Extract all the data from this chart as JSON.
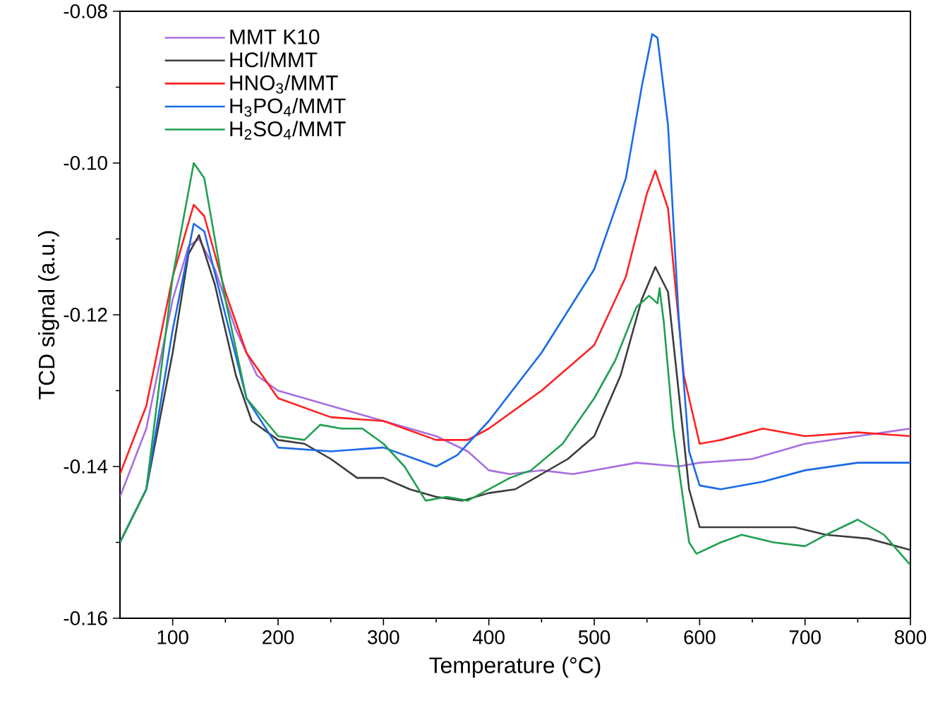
{
  "chart_data": {
    "type": "line",
    "xlabel": "Temperature (°C)",
    "ylabel": "TCD signal (a.u.)",
    "xlim": [
      50,
      800
    ],
    "xticks": [
      100,
      200,
      300,
      400,
      500,
      600,
      700,
      800
    ],
    "ylim": [
      -0.16,
      -0.08
    ],
    "yticks": [
      {
        "value": -0.16,
        "label": "-0.16"
      },
      {
        "value": -0.14,
        "label": "-0.14"
      },
      {
        "value": -0.12,
        "label": "-0.12"
      },
      {
        "value": -0.1,
        "label": "-0.10"
      },
      {
        "value": -0.08,
        "label": "-0.08"
      }
    ],
    "grid": false,
    "legend": "top left",
    "marker": "none",
    "line_style": "solid",
    "series": [
      {
        "name": "MMT K10",
        "color": "#a86ee0",
        "x": [
          50,
          75,
          100,
          115,
          125,
          140,
          160,
          180,
          200,
          250,
          300,
          350,
          380,
          400,
          420,
          450,
          480,
          500,
          540,
          580,
          600,
          650,
          700,
          750,
          800
        ],
        "values": [
          -0.144,
          -0.135,
          -0.118,
          -0.111,
          -0.11,
          -0.114,
          -0.122,
          -0.128,
          -0.13,
          -0.132,
          -0.134,
          -0.136,
          -0.138,
          -0.1405,
          -0.141,
          -0.1405,
          -0.141,
          -0.1405,
          -0.1395,
          -0.14,
          -0.1395,
          -0.139,
          -0.137,
          -0.136,
          -0.135
        ]
      },
      {
        "name": "HCl/MMT",
        "color": "#3c3c3c",
        "x": [
          50,
          75,
          100,
          115,
          125,
          140,
          160,
          175,
          200,
          225,
          250,
          275,
          300,
          325,
          350,
          375,
          400,
          425,
          450,
          475,
          500,
          525,
          545,
          558,
          570,
          580,
          590,
          600,
          650,
          690,
          720,
          760,
          800
        ],
        "values": [
          -0.15,
          -0.143,
          -0.125,
          -0.112,
          -0.1095,
          -0.116,
          -0.128,
          -0.134,
          -0.1365,
          -0.137,
          -0.139,
          -0.1415,
          -0.1415,
          -0.143,
          -0.144,
          -0.1445,
          -0.1435,
          -0.143,
          -0.141,
          -0.139,
          -0.136,
          -0.128,
          -0.118,
          -0.1137,
          -0.117,
          -0.13,
          -0.143,
          -0.148,
          -0.148,
          -0.148,
          -0.149,
          -0.1495,
          -0.151
        ]
      },
      {
        "name": "HNO$_{3}$/MMT",
        "color": "#ff2020",
        "x": [
          50,
          75,
          100,
          120,
          130,
          150,
          170,
          200,
          250,
          300,
          350,
          380,
          400,
          450,
          500,
          530,
          550,
          558,
          570,
          585,
          600,
          620,
          660,
          700,
          750,
          800
        ],
        "values": [
          -0.141,
          -0.132,
          -0.115,
          -0.1055,
          -0.107,
          -0.117,
          -0.125,
          -0.131,
          -0.1335,
          -0.134,
          -0.1365,
          -0.1365,
          -0.135,
          -0.13,
          -0.124,
          -0.115,
          -0.104,
          -0.101,
          -0.106,
          -0.128,
          -0.137,
          -0.1365,
          -0.135,
          -0.136,
          -0.1355,
          -0.136
        ]
      },
      {
        "name": "H$_{3}$PO$_{4}$/MMT",
        "color": "#1a6ae8",
        "x": [
          50,
          75,
          100,
          120,
          130,
          150,
          170,
          200,
          250,
          300,
          330,
          350,
          370,
          400,
          450,
          500,
          530,
          545,
          555,
          560,
          570,
          580,
          590,
          600,
          620,
          660,
          700,
          750,
          800
        ],
        "values": [
          -0.15,
          -0.143,
          -0.122,
          -0.108,
          -0.109,
          -0.12,
          -0.131,
          -0.1375,
          -0.138,
          -0.1375,
          -0.139,
          -0.14,
          -0.1385,
          -0.134,
          -0.125,
          -0.114,
          -0.102,
          -0.09,
          -0.083,
          -0.0835,
          -0.095,
          -0.12,
          -0.138,
          -0.1425,
          -0.143,
          -0.142,
          -0.1405,
          -0.1395,
          -0.1395
        ]
      },
      {
        "name": "H$_{2}$SO$_{4}$/MMT",
        "color": "#1fa050",
        "x": [
          50,
          75,
          100,
          120,
          130,
          150,
          170,
          200,
          225,
          240,
          260,
          280,
          300,
          320,
          340,
          360,
          380,
          400,
          420,
          440,
          470,
          500,
          520,
          540,
          552,
          560,
          562,
          566,
          575,
          590,
          597,
          620,
          640,
          670,
          700,
          720,
          750,
          775,
          800
        ],
        "values": [
          -0.15,
          -0.143,
          -0.115,
          -0.1,
          -0.102,
          -0.118,
          -0.131,
          -0.136,
          -0.1365,
          -0.1345,
          -0.135,
          -0.135,
          -0.137,
          -0.14,
          -0.1445,
          -0.144,
          -0.1445,
          -0.143,
          -0.1415,
          -0.1405,
          -0.137,
          -0.131,
          -0.126,
          -0.119,
          -0.1175,
          -0.1185,
          -0.1165,
          -0.121,
          -0.135,
          -0.15,
          -0.1515,
          -0.15,
          -0.149,
          -0.15,
          -0.1505,
          -0.149,
          -0.147,
          -0.149,
          -0.153
        ]
      }
    ]
  }
}
